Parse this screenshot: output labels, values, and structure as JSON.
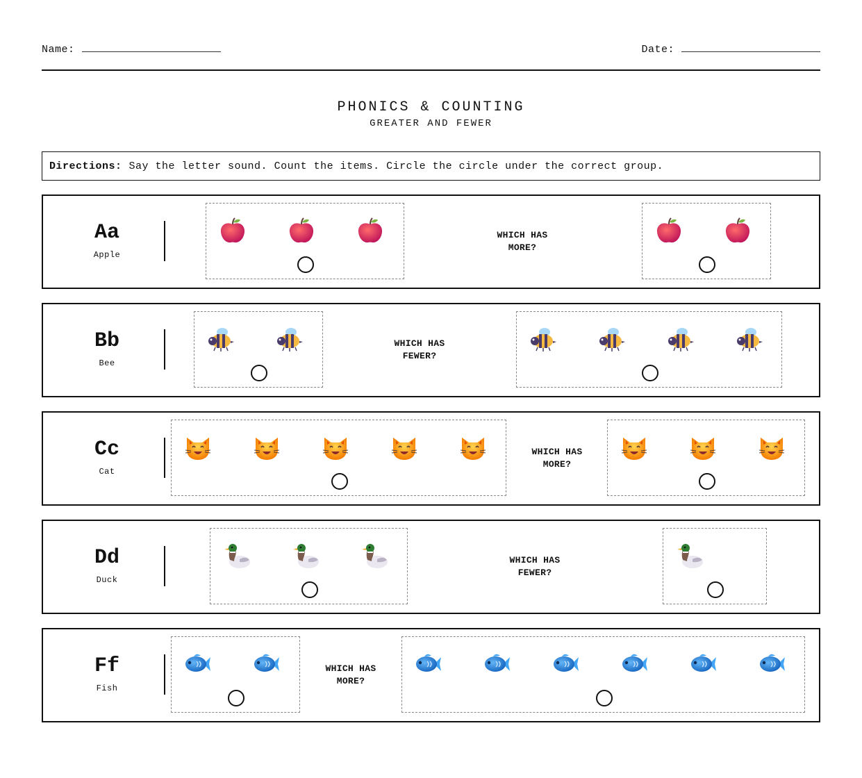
{
  "header": {
    "name_label": "Name:",
    "date_label": "Date:"
  },
  "title": "PHONICS & COUNTING",
  "subtitle": "GREATER AND FEWER",
  "directions": {
    "label": "Directions:",
    "text": "Say the letter sound. Count the items. Circle the circle under the correct group."
  },
  "rows": [
    {
      "letter": "Aa",
      "word": "Apple",
      "icon": "apple-icon",
      "question_line1": "WHICH HAS",
      "question_line2": "MORE?",
      "left_count": 3,
      "right_count": 2
    },
    {
      "letter": "Bb",
      "word": "Bee",
      "icon": "bee-icon",
      "question_line1": "WHICH HAS",
      "question_line2": "FEWER?",
      "left_count": 2,
      "right_count": 4
    },
    {
      "letter": "Cc",
      "word": "Cat",
      "icon": "cat-icon",
      "question_line1": "WHICH HAS",
      "question_line2": "MORE?",
      "left_count": 5,
      "right_count": 3
    },
    {
      "letter": "Dd",
      "word": "Duck",
      "icon": "duck-icon",
      "question_line1": "WHICH HAS",
      "question_line2": "FEWER?",
      "left_count": 3,
      "right_count": 1
    },
    {
      "letter": "Ff",
      "word": "Fish",
      "icon": "fish-icon",
      "question_line1": "WHICH HAS",
      "question_line2": "MORE?",
      "left_count": 2,
      "right_count": 6
    }
  ]
}
